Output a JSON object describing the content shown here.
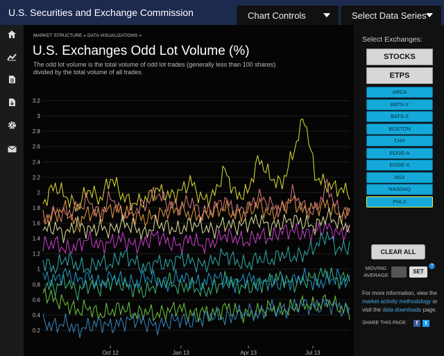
{
  "header": {
    "site_title": "U.S. Securities and Exchange Commission",
    "chart_controls_label": "Chart Controls",
    "select_series_label": "Select Data Series"
  },
  "sidebar": {
    "icons": [
      "home-icon",
      "chart-line-icon",
      "document-icon",
      "download-document-icon",
      "gear-icon",
      "envelope-icon"
    ]
  },
  "breadcrumb": {
    "item1": "MARKET STRUCTURE",
    "item2": "DATA VISUALIZATIONS",
    "sep": "»"
  },
  "page_title": "U.S. Exchanges Odd Lot Volume (%)",
  "description": "The odd lot volume is the total volume of odd lot trades (generally less than 100 shares) divided by the total volume of all trades.",
  "right_panel": {
    "heading": "Select Exchanges:",
    "stocks_label": "STOCKS",
    "etps_label": "ETPS",
    "exchanges": [
      "ARCA",
      "BATS-Y",
      "BATS-Z",
      "BOSTON",
      "CHX",
      "EDGE-A",
      "EDGE-X",
      "NSX",
      "NASDAQ",
      "PHLX"
    ],
    "selected_exchange": "PHLX",
    "clear_all_label": "CLEAR ALL",
    "moving_average_label": "MOVING AVERAGE",
    "set_label": "SET",
    "help_label": "?",
    "info_prefix": "For more information, view the ",
    "info_link1": "market activity methodology",
    "info_mid": " or visit the ",
    "info_link2": "data downloads",
    "info_suffix": " page.",
    "share_label": "SHARE THIS PAGE:",
    "share_icons": [
      "facebook-icon",
      "twitter-icon"
    ],
    "facebook_glyph": "f",
    "twitter_glyph": "t"
  },
  "chart_data": {
    "type": "line",
    "title": "U.S. Exchanges Odd Lot Volume (%)",
    "xlabel": "",
    "ylabel": "",
    "ylim": [
      0,
      3.3
    ],
    "yticks": [
      "0.2",
      "0.4",
      "0.6",
      "0.8",
      "1",
      "1.2",
      "1.4",
      "1.6",
      "1.8",
      "2",
      "2.2",
      "2.4",
      "2.6",
      "2.8",
      "3",
      "3.2"
    ],
    "xticks": [
      "Oct 12",
      "Jan 13",
      "Apr 13",
      "Jul 13"
    ],
    "grid": true,
    "series": [
      {
        "color": "#e5e53a",
        "values": [
          1.85,
          2.1,
          1.95,
          1.8,
          2.05,
          1.9,
          2.2,
          1.95,
          1.85,
          1.9,
          2.05,
          1.95,
          2.0,
          2.15,
          1.9,
          1.95,
          2.3,
          1.95,
          2.0,
          2.45,
          2.2,
          2.1,
          2.5,
          3.0,
          2.2,
          2.1,
          2.05,
          2.0
        ]
      },
      {
        "color": "#f0a040",
        "values": [
          1.65,
          1.7,
          1.8,
          1.55,
          1.75,
          1.7,
          1.8,
          1.75,
          1.7,
          1.65,
          1.7,
          1.75,
          1.8,
          1.7,
          1.7,
          1.75,
          1.8,
          1.7,
          1.75,
          1.85,
          1.7,
          1.8,
          1.9,
          1.75,
          1.8,
          1.85,
          1.7,
          1.75
        ]
      },
      {
        "color": "#e08080",
        "values": [
          1.6,
          1.75,
          1.7,
          1.8,
          1.9,
          1.7,
          1.95,
          1.7,
          1.75,
          1.85,
          2.0,
          1.85,
          1.8,
          1.9,
          1.7,
          1.8,
          1.9,
          1.75,
          1.8,
          1.95,
          1.85,
          1.75,
          2.0,
          1.8,
          1.75,
          2.1,
          1.75,
          1.7
        ]
      },
      {
        "color": "#d040d0",
        "values": [
          1.3,
          1.35,
          1.25,
          1.3,
          1.4,
          1.3,
          1.35,
          1.4,
          1.3,
          1.35,
          1.45,
          1.35,
          1.3,
          1.4,
          1.3,
          1.35,
          1.45,
          1.4,
          1.35,
          1.45,
          1.4,
          1.5,
          1.5,
          1.45,
          1.5,
          1.55,
          1.45,
          1.5
        ]
      },
      {
        "color": "#e8e8a0",
        "values": [
          1.5,
          1.55,
          1.45,
          1.6,
          1.5,
          1.55,
          1.5,
          1.6,
          1.55,
          1.45,
          1.6,
          1.55,
          1.5,
          1.6,
          1.55,
          1.5,
          1.6,
          1.55,
          1.6,
          1.65,
          1.55,
          1.6,
          1.65,
          1.6,
          1.55,
          1.7,
          1.6,
          1.55
        ]
      },
      {
        "color": "#30b0b0",
        "values": [
          1.1,
          1.0,
          1.15,
          1.05,
          1.0,
          1.1,
          1.05,
          1.2,
          1.1,
          1.0,
          1.1,
          1.05,
          1.15,
          1.1,
          1.05,
          1.1,
          1.2,
          1.1,
          1.05,
          1.15,
          1.1,
          1.2,
          1.15,
          1.2,
          1.3,
          1.45,
          1.25,
          1.3
        ]
      },
      {
        "color": "#40c080",
        "values": [
          0.8,
          0.75,
          0.85,
          0.7,
          0.8,
          0.75,
          0.85,
          0.8,
          0.75,
          0.7,
          0.8,
          0.85,
          0.75,
          0.8,
          0.7,
          0.75,
          0.85,
          0.8,
          0.75,
          0.8,
          0.85,
          0.9,
          0.8,
          0.85,
          0.9,
          0.95,
          0.85,
          0.9
        ]
      },
      {
        "color": "#70d040",
        "values": [
          0.7,
          0.6,
          0.55,
          0.45,
          0.5,
          0.4,
          0.45,
          0.5,
          0.4,
          0.45,
          0.4,
          0.45,
          0.5,
          0.4,
          0.45,
          0.4,
          0.5,
          0.45,
          0.4,
          0.45,
          0.5,
          0.45,
          0.5,
          0.55,
          0.5,
          0.6,
          0.5,
          0.45
        ]
      },
      {
        "color": "#3a8cc8",
        "values": [
          0.3,
          0.25,
          0.3,
          0.2,
          0.25,
          0.3,
          0.25,
          0.3,
          0.35,
          0.3,
          0.25,
          0.3,
          0.35,
          0.3,
          0.35,
          0.4,
          0.35,
          0.4,
          0.45,
          0.4,
          0.5,
          0.45,
          0.5,
          0.55,
          0.5,
          0.55,
          0.5,
          0.45
        ]
      },
      {
        "color": "#20a0d0",
        "values": [
          0.9,
          0.85,
          0.95,
          0.85,
          0.9,
          0.8,
          0.9,
          0.85,
          0.8,
          0.9,
          0.85,
          0.8,
          0.9,
          0.85,
          0.8,
          0.9,
          0.85,
          0.8,
          0.9,
          0.8,
          0.85,
          0.8,
          0.85,
          0.9,
          0.8,
          0.85,
          0.9,
          0.8
        ]
      }
    ]
  }
}
